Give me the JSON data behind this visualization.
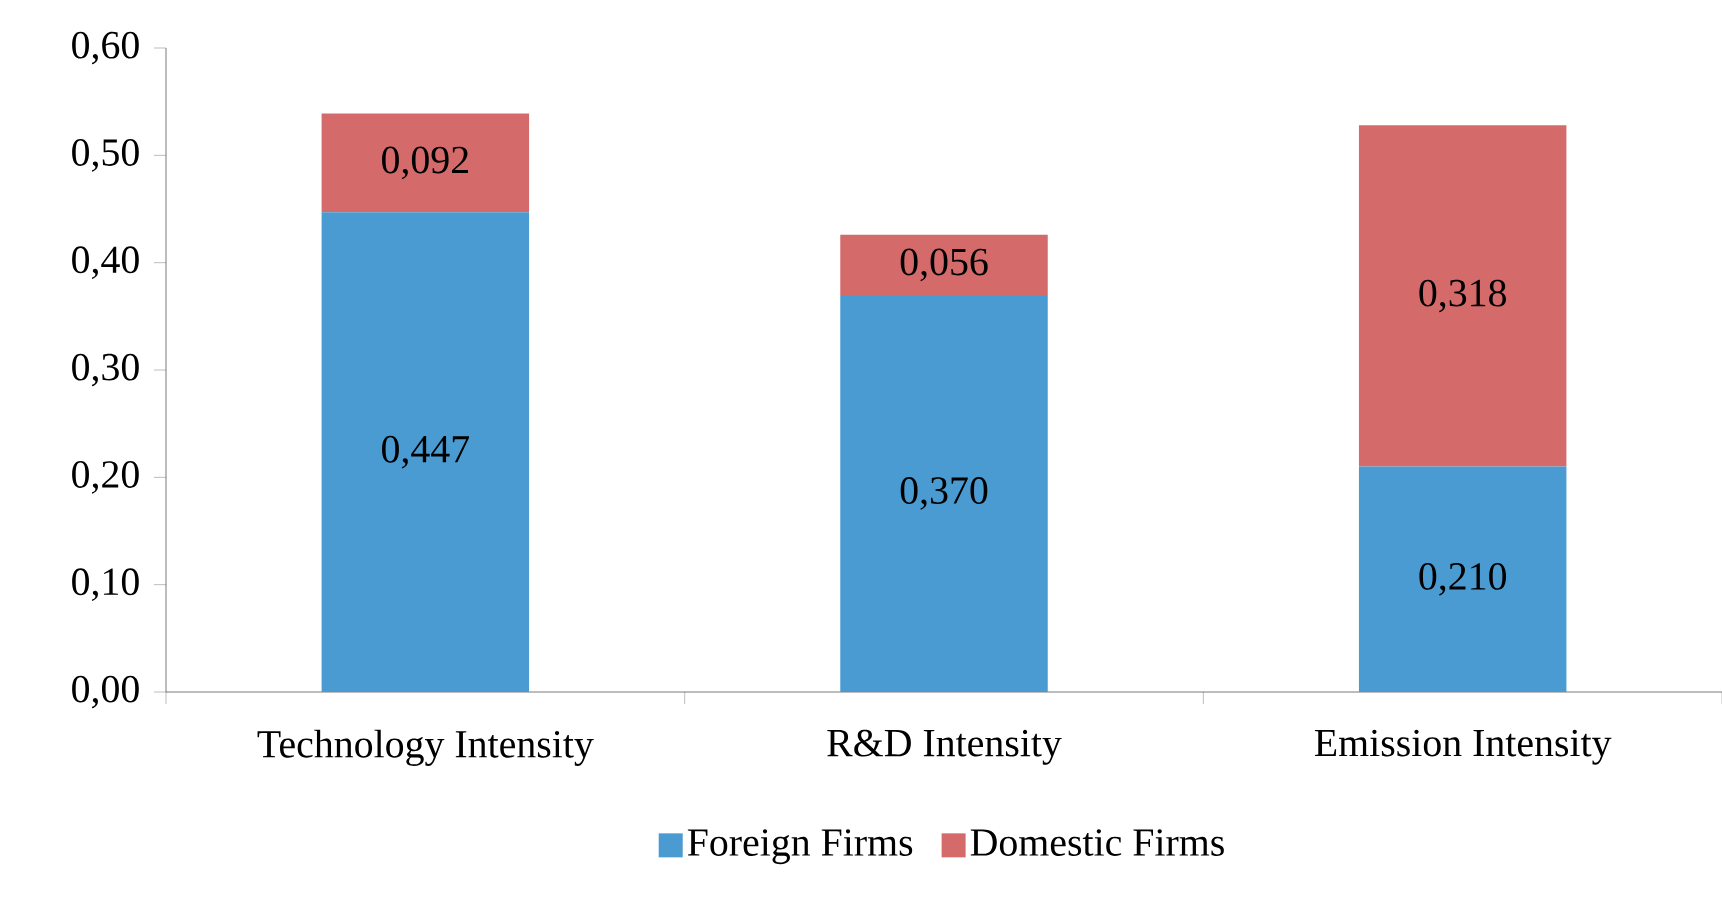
{
  "chart_data": {
    "type": "bar",
    "stacked": true,
    "categories": [
      "Technology Intensity",
      "R&D Intensity",
      "Emission Intensity"
    ],
    "series": [
      {
        "name": "Foreign Firms",
        "color": "#4a9bd2",
        "values": [
          0.447,
          0.37,
          0.21
        ],
        "value_labels": [
          "0,447",
          "0,370",
          "0,210"
        ]
      },
      {
        "name": "Domestic Firms",
        "color": "#d46a6a",
        "values": [
          0.092,
          0.056,
          0.318
        ],
        "value_labels": [
          "0,092",
          "0,056",
          "0,318"
        ]
      }
    ],
    "ylim": [
      0,
      0.6
    ],
    "yticks": [
      {
        "value": 0,
        "label": "0,00"
      },
      {
        "value": 0.1,
        "label": "0,10"
      },
      {
        "value": 0.2,
        "label": "0,20"
      },
      {
        "value": 0.3,
        "label": "0,30"
      },
      {
        "value": 0.4,
        "label": "0,40"
      },
      {
        "value": 0.5,
        "label": "0,50"
      },
      {
        "value": 0.6,
        "label": "0,60"
      }
    ],
    "grid": false,
    "legend": "bottom"
  }
}
